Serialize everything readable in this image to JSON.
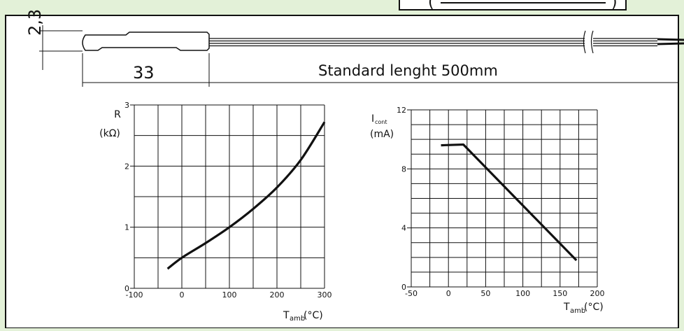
{
  "top_box_text": "(",
  "top_box_text_2": ")",
  "dimensions": {
    "diameter": "2,3",
    "body_length": "33",
    "lead_length": "Standard lenght 500mm"
  },
  "colors": {
    "background": "#e3f1d8",
    "panel": "#ffffff",
    "line": "#111111"
  },
  "chart_data": [
    {
      "type": "line",
      "ylabel_main": "R",
      "ylabel_unit": "(kΩ)",
      "xlabel_main": "T",
      "xlabel_sub": "amb",
      "xlabel_unit": "(°C)",
      "xlim": [
        -100,
        300
      ],
      "ylim": [
        0,
        3
      ],
      "x_ticks": [
        -100,
        0,
        100,
        200,
        300
      ],
      "y_ticks": [
        0,
        1,
        2,
        3
      ],
      "grid": true,
      "series": [
        {
          "x": [
            -30,
            0,
            50,
            100,
            150,
            200,
            250,
            300
          ],
          "values": [
            0.32,
            0.5,
            0.74,
            1.0,
            1.3,
            1.65,
            2.1,
            2.72
          ]
        }
      ]
    },
    {
      "type": "line",
      "ylabel_main": "I",
      "ylabel_sub": "cont",
      "ylabel_unit": "(mA)",
      "xlabel_main": "T",
      "xlabel_sub": "amb",
      "xlabel_unit": "(°C)",
      "xlim": [
        -50,
        200
      ],
      "ylim": [
        0,
        12
      ],
      "x_ticks": [
        -50,
        0,
        50,
        100,
        150,
        200
      ],
      "y_ticks": [
        0,
        4,
        8,
        12
      ],
      "grid": true,
      "series": [
        {
          "x": [
            -10,
            20,
            172
          ],
          "values": [
            9.6,
            9.65,
            1.8
          ]
        }
      ]
    }
  ]
}
